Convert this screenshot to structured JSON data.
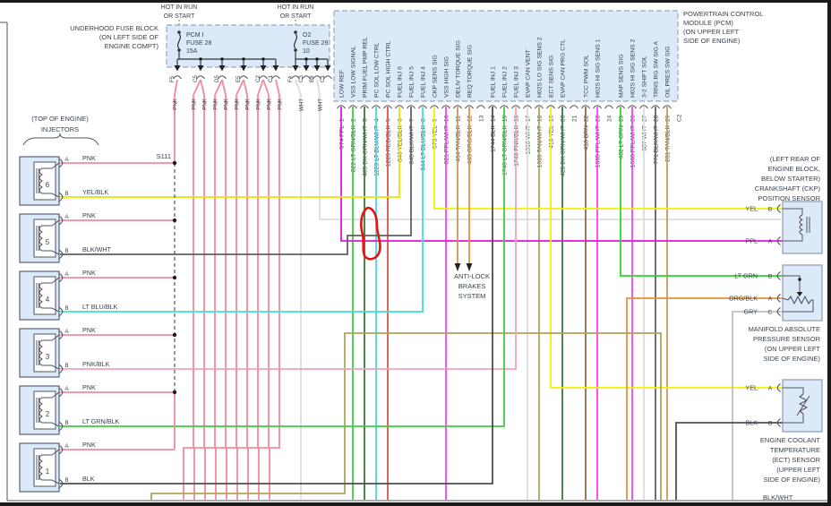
{
  "fuse_block": {
    "location_label": [
      "UNDERHOOD FUSE BLOCK",
      "(ON LEFT SIDE OF",
      "ENGINE COMPT)"
    ],
    "hot_label": [
      "HOT IN RUN",
      "OR START"
    ],
    "fuses": [
      {
        "lines": [
          "PCM I",
          "FUSE 28",
          "15A"
        ]
      },
      {
        "lines": [
          "O2",
          "FUSE 29",
          "10"
        ]
      }
    ],
    "pnk_terminals": [
      "F5",
      "C5",
      "D5",
      "E5",
      "C2",
      "C1"
    ],
    "wht_terminals": [
      "F4",
      "C3",
      "B9",
      "C1"
    ],
    "pnk_wire_label": "PNK",
    "wht_wire_label": "WHT"
  },
  "pcm": {
    "location_label": [
      "POWERTRAIN CONTROL",
      "MODULE (PCM)",
      "(ON UPPER LEFT",
      "SIDE OF ENGINE)"
    ],
    "connector_right": "C2",
    "pins": [
      {
        "num": "1",
        "name": "LOW REF",
        "wire": "574",
        "color": "PPL"
      },
      {
        "num": "2",
        "name": "VSS LOW SIGNAL",
        "wire": "822",
        "color": "LT GRN/BLK"
      },
      {
        "num": "3",
        "name": "PRIM FUEL PMP REL",
        "wire": "465",
        "color": "DK GRN/WHT"
      },
      {
        "num": "4",
        "name": "PC SOL LOW CTRL",
        "wire": "1229",
        "color": "LT BLU/WHT"
      },
      {
        "num": "5",
        "name": "PC SOL HIGH CTRL",
        "wire": "1228",
        "color": "RED/BLK"
      },
      {
        "num": "6",
        "name": "FUEL INJ 6",
        "wire": "846",
        "color": "YEL/BLK"
      },
      {
        "num": "7",
        "name": "FUEL INJ 5",
        "wire": "845",
        "color": "BLK/WHT"
      },
      {
        "num": "8",
        "name": "FUEL INJ 4",
        "wire": "844",
        "color": "LT BLU/BLK"
      },
      {
        "num": "9",
        "name": "CKP SENS SIG",
        "wire": "573",
        "color": "YEL"
      },
      {
        "num": "10",
        "name": "VSS HIGH SIG",
        "wire": "821",
        "color": "PPL/WHT"
      },
      {
        "num": "11",
        "name": "DELIV TORQUE SIG",
        "wire": "464",
        "color": "TAN/BLK"
      },
      {
        "num": "12",
        "name": "REQ TORQUE SIG",
        "wire": "463",
        "color": "ORG/BLK"
      },
      {
        "num": "13",
        "name": "",
        "wire": "",
        "color": ""
      },
      {
        "num": "14",
        "name": "FUEL INJ 1",
        "wire": "1744",
        "color": "BLK"
      },
      {
        "num": "15",
        "name": "FUEL INJ 2",
        "wire": "1745",
        "color": "LT GRN/BLK"
      },
      {
        "num": "16",
        "name": "FUEL INJ 3",
        "wire": "1746",
        "color": "PNK/BLK"
      },
      {
        "num": "17",
        "name": "EVAP CAN VENT",
        "wire": "1310",
        "color": "WHT"
      },
      {
        "num": "18",
        "name": "H02S LO SIG SENS 2",
        "wire": "1669",
        "color": "TAN/WHT"
      },
      {
        "num": "19",
        "name": "ECT SENS SIG",
        "wire": "410",
        "color": "YEL"
      },
      {
        "num": "20",
        "name": "EVAP CAN PRG CTL",
        "wire": "428",
        "color": "DK GRN/WHT"
      },
      {
        "num": "21",
        "name": "",
        "wire": "",
        "color": ""
      },
      {
        "num": "22",
        "name": "TCC PWM SOL",
        "wire": "418",
        "color": "BRN"
      },
      {
        "num": "23",
        "name": "H02S HI SIG SENS 1",
        "wire": "1665",
        "color": "PPL/WHT"
      },
      {
        "num": "24",
        "name": "",
        "wire": "",
        "color": ""
      },
      {
        "num": "25",
        "name": "MAP SENS SIG",
        "wire": "432",
        "color": "LT GRN"
      },
      {
        "num": "26",
        "name": "H02S HI SIG SENS 2",
        "wire": "1668",
        "color": "PPL/WHT"
      },
      {
        "num": "27",
        "name": "3-2 SHIFT SOL",
        "wire": "687",
        "color": "WHT"
      },
      {
        "num": "28",
        "name": "TRNS RG SW SIG A",
        "wire": "771",
        "color": "BLK/WHT"
      },
      {
        "num": "29",
        "name": "OIL PRES SW SIG",
        "wire": "231",
        "color": "TAN/BLK"
      }
    ]
  },
  "injectors": {
    "location_label": [
      "(TOP OF ENGINE)",
      "INJECTORS"
    ],
    "splice_label": "S111",
    "pin_a_letter": "A",
    "pin_b_letter": "B",
    "pin_a_color": "PNK",
    "items": [
      {
        "num": "6",
        "b_color": "YEL/BLK"
      },
      {
        "num": "5",
        "b_color": "BLK/WHT"
      },
      {
        "num": "4",
        "b_color": "LT BLU/BLK"
      },
      {
        "num": "3",
        "b_color": "PNK/BLK"
      },
      {
        "num": "2",
        "b_color": "LT GRN/BLK"
      },
      {
        "num": "1",
        "b_color": "BLK"
      }
    ]
  },
  "sensors": [
    {
      "id": "ckp",
      "label": [
        "(LEFT REAR OF",
        "ENGINE BLOCK,",
        "BELOW STARTER)",
        "CRANKSHAFT (CKP)",
        "POSITION SENSOR"
      ],
      "pins": [
        {
          "letter": "B",
          "color": "YEL"
        },
        {
          "letter": "A",
          "color": "PPL"
        }
      ]
    },
    {
      "id": "map",
      "label": [
        "MANIFOLD ABSOLUTE",
        "PRESSURE SENSOR",
        "(ON UPPER LEFT",
        "SIDE OF ENGINE)"
      ],
      "pins": [
        {
          "letter": "B",
          "color": "LT GRN"
        },
        {
          "letter": "A",
          "color": "ORG/BLK"
        },
        {
          "letter": "C",
          "color": "GRY"
        }
      ]
    },
    {
      "id": "ect",
      "label": [
        "ENGINE COOLANT",
        "TEMPERATURE",
        "(ECT) SENSOR",
        "(UPPER LEFT",
        "SIDE OF ENGINE)"
      ],
      "pins": [
        {
          "letter": "A",
          "color": "YEL"
        },
        {
          "letter": "B",
          "color": "BLK"
        }
      ]
    }
  ],
  "abs_label": [
    "ANTI-LOCK",
    "BRAKES",
    "SYSTEM"
  ],
  "bottom_wire_label": "BLK/WHT",
  "red_annotation": {
    "color": "#e61410"
  },
  "wire_colors": {
    "PNK": "#f4899c",
    "WHT": "#dcdcdc",
    "PPL": "#e212e2",
    "LT GRN/BLK": "#3ecc3e",
    "DK GRN/WHT": "#357a38",
    "LT BLU/WHT": "#3fdede",
    "RED/BLK": "#d9544d",
    "YEL/BLK": "#ece400",
    "BLK/WHT": "#606060",
    "LT BLU/BLK": "#3fdede",
    "YEL": "#f8ef00",
    "PPL/WHT": "#ff3dff",
    "TAN/BLK": "#c49a5d",
    "ORG/BLK": "#ec8f35",
    "BLK": "#4d4d4d",
    "PNK/BLK": "#f2a3b6",
    "TAN/WHT": "#b3a15c",
    "BRN": "#8b7040",
    "LT GRN": "#28d828",
    "GRY": "#bfbfbf"
  },
  "ui_colors": {
    "box_fill": "#dbe9f8",
    "box_border": "#9aa7b5",
    "text": "#38424e",
    "frame": "#555555",
    "window_border": "#1a1a1a"
  }
}
